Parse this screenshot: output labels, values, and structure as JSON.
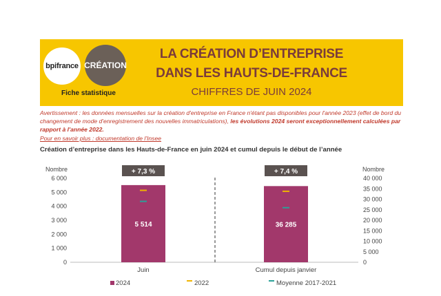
{
  "header": {
    "logo_bpi": "bpifrance",
    "logo_creation": "CRÉATION",
    "fiche": "Fiche statistique",
    "title_line1": "LA CRÉATION D’ENTREPRISE",
    "title_line2": "DANS LES HAUTS-DE-FRANCE",
    "subtitle": "CHIFFRES DE JUIN 2024"
  },
  "warning": {
    "text": "Avertissement : les données mensuelles sur la création d'entreprise en France n'étant pas disponibles pour l'année 2023 (effet de bord du changement de mode d'enregistrement des nouvelles immatriculations), ",
    "bold": "les évolutions 2024 seront exceptionnellement calculées par rapport à l'année 2022."
  },
  "link": "Pour en savoir plus : documentation de l'Insee",
  "chart_title": "Création d’entreprise dans les Hauts-de-France  en juin 2024 et cumul depuis le début de l’année",
  "colors": {
    "banner": "#f7c600",
    "bar": "#a2386b",
    "marker_2022": "#f0b400",
    "marker_avg": "#2aa198",
    "badge": "#5a5250"
  },
  "chart_data": {
    "type": "bar",
    "categories": [
      "Juin",
      "Cumul depuis janvier"
    ],
    "left_axis": {
      "label": "Nombre",
      "ylim": [
        0,
        6000
      ],
      "ticks": [
        "0",
        "1 000",
        "2 000",
        "3 000",
        "4 000",
        "5 000",
        "6 000"
      ]
    },
    "right_axis": {
      "label": "Nombre",
      "ylim": [
        0,
        40000
      ],
      "ticks": [
        "0",
        "5 000",
        "10 000",
        "15 000",
        "20 000",
        "25 000",
        "30 000",
        "35 000",
        "40 000"
      ]
    },
    "series": [
      {
        "name": "2024",
        "values": [
          5514,
          36285
        ],
        "labels": [
          "5 514",
          "36 285"
        ]
      },
      {
        "name": "2022",
        "values": [
          5140,
          33800
        ]
      },
      {
        "name": "Moyenne 2017-2021",
        "values": [
          4350,
          26000
        ]
      }
    ],
    "badges": [
      "+ 7,3 %",
      "+ 7,4 %"
    ],
    "legend_position": "bottom"
  }
}
